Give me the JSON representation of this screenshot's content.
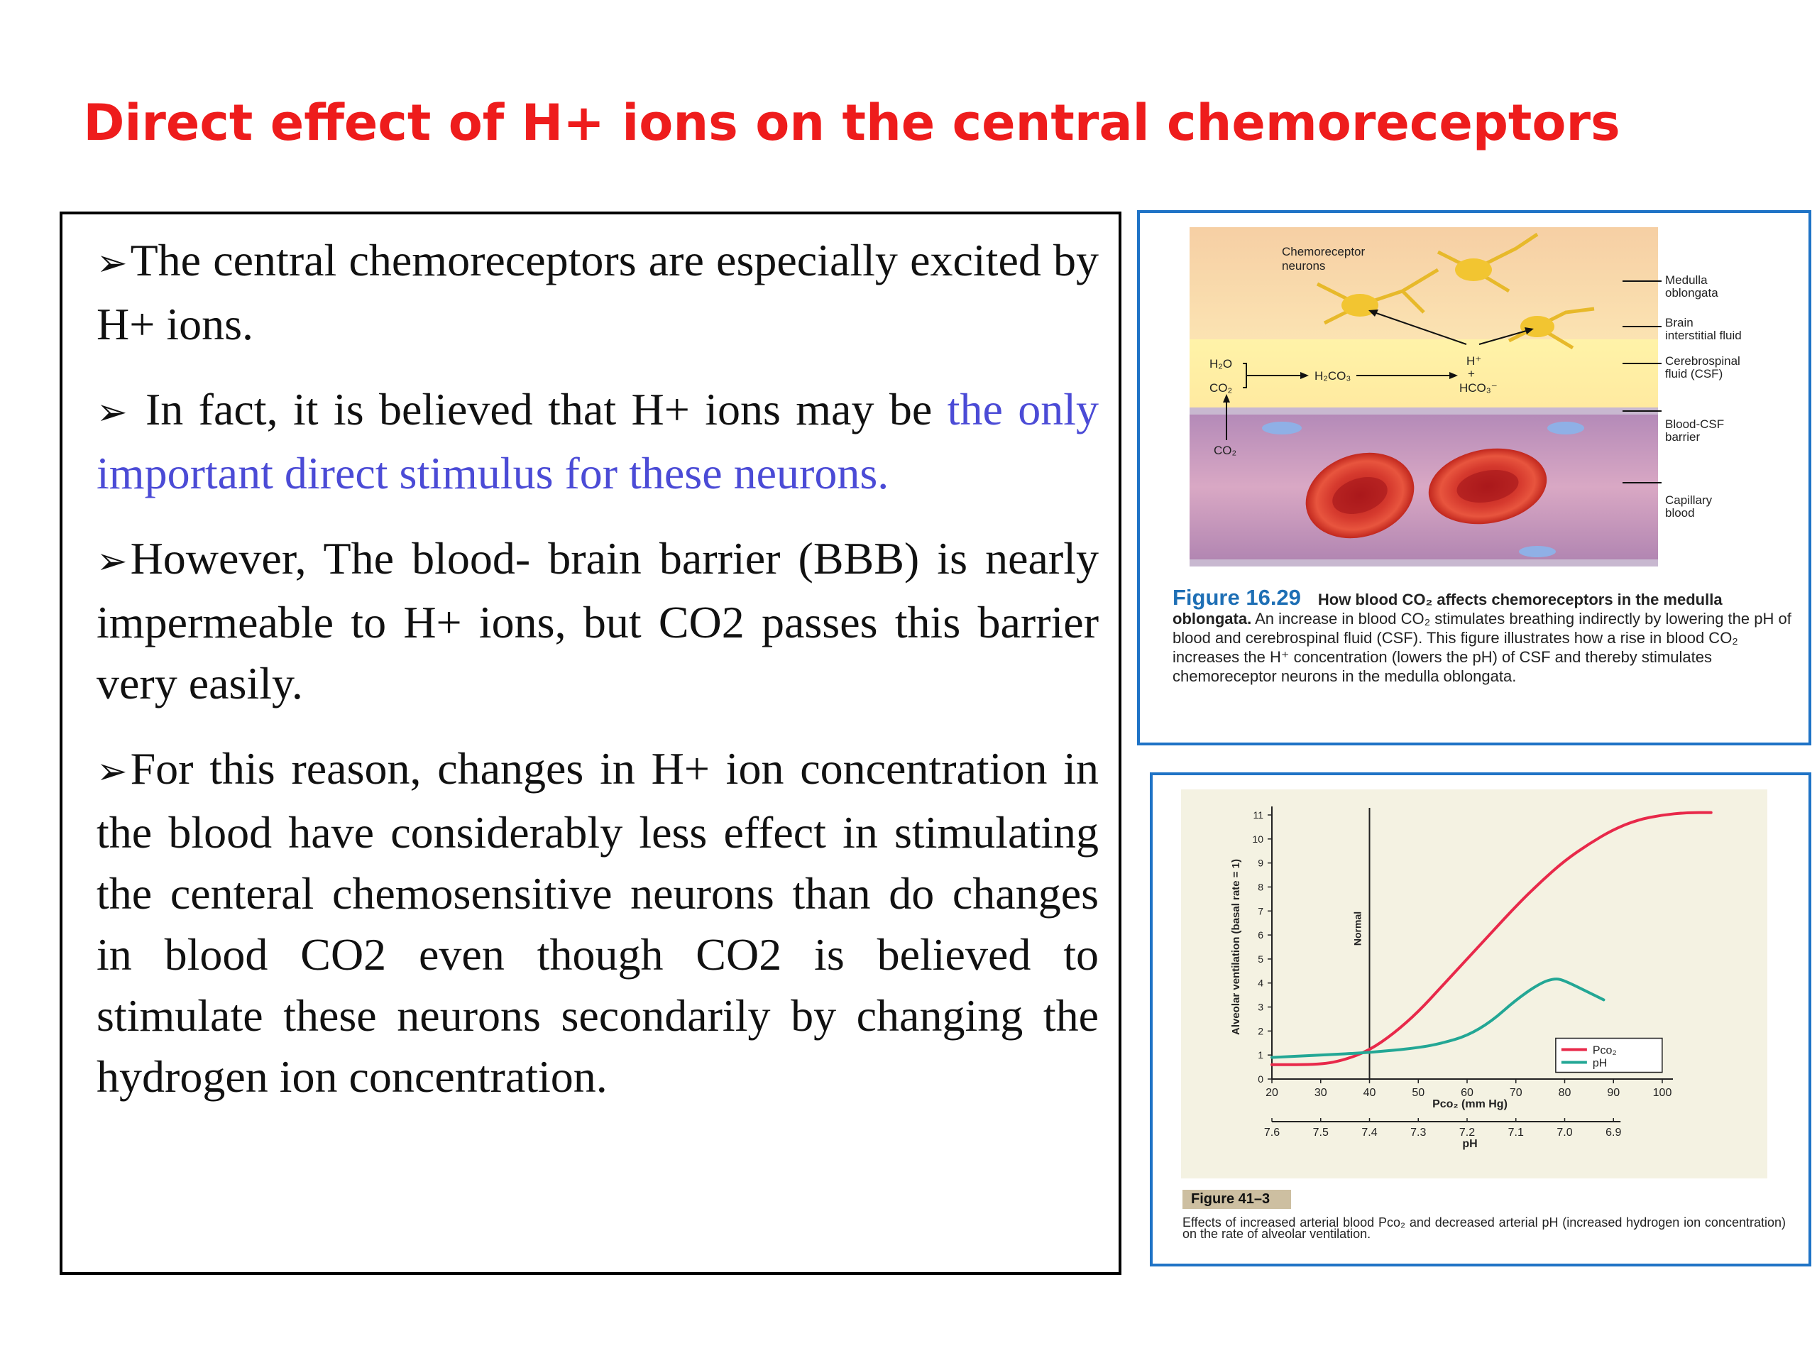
{
  "slide": {
    "title": "Direct effect of H+ ions on the central chemoreceptors",
    "paragraphs": [
      {
        "bullet": "➢",
        "text": "The central chemoreceptors are especially excited by H+ ions.",
        "highlight": ""
      },
      {
        "bullet": "➢",
        "text": " In fact, it is believed that H+ ions may be ",
        "highlight": "the only important direct stimulus for these neurons."
      },
      {
        "bullet": "➢",
        "text": "However, The blood- brain barrier (BBB) is nearly impermeable to H+ ions, but CO2 passes this barrier very easily.",
        "highlight": ""
      },
      {
        "bullet": "➢",
        "text": "For this reason, changes in H+ ion concentration in the blood have considerably less effect in stimulating the centeral chemosensitive neurons than do changes in blood CO2  even though CO2 is believed to stimulate these neurons secondarily by changing the hydrogen ion concentration.",
        "highlight": ""
      }
    ],
    "colors": {
      "title": "#ee1c1c",
      "highlight": "#4b4bd6",
      "figure_border": "#1f73c6"
    }
  },
  "figure1": {
    "labels": {
      "neurons": [
        "Chemoreceptor",
        "neurons"
      ],
      "medulla": [
        "Medulla",
        "oblongata"
      ],
      "interstitial": [
        "Brain",
        "interstitial fluid"
      ],
      "csf": [
        "Cerebrospinal",
        "fluid (CSF)"
      ],
      "barrier": [
        "Blood-CSF",
        "barrier"
      ],
      "capillary": [
        "Capillary",
        "blood"
      ],
      "h2o": "H₂O",
      "co2_top": "CO₂",
      "h2co3": "H₂CO₃",
      "hplus": "H⁺",
      "plus": "+",
      "hco3": "HCO₃⁻",
      "co2_bottom": "CO₂"
    },
    "caption": {
      "figure_label": "Figure 16.29",
      "bold": "How blood CO₂ affects chemoreceptors in the medulla oblongata.",
      "text": " An increase in blood CO₂ stimulates breathing indirectly by lowering the pH of blood and cerebrospinal fluid (CSF). This figure illustrates how a rise in blood CO₂ increases the H⁺ concentration (lowers the pH) of CSF and thereby stimulates chemoreceptor neurons in the medulla oblongata."
    }
  },
  "figure2": {
    "figure_tag": "Figure 41–3",
    "caption": "Effects of increased arterial blood Pco₂ and decreased arterial pH (increased hydrogen ion concentration) on the rate of alveolar ventilation.",
    "chart_data": {
      "type": "line",
      "ylabel": "Alveolar ventilation (basal rate = 1)",
      "xlabel": "Pco₂ (mm Hg)",
      "x2label": "pH",
      "ylim": [
        0,
        11
      ],
      "xlim": [
        20,
        100
      ],
      "yticks": [
        "0",
        "1",
        "2",
        "3",
        "4",
        "5",
        "6",
        "7",
        "8",
        "9",
        "10",
        "11"
      ],
      "xticks": [
        "20",
        "30",
        "40",
        "50",
        "60",
        "70",
        "80",
        "90",
        "100"
      ],
      "x2ticks": [
        "7.6",
        "7.5",
        "7.4",
        "7.3",
        "7.2",
        "7.1",
        "7.0",
        "6.9"
      ],
      "normal_label": "Normal",
      "normal_x": 40,
      "legend_position": "bottom-right",
      "series": [
        {
          "name": "Pco₂",
          "color": "#e8294a",
          "x": [
            20,
            30,
            35,
            40,
            45,
            50,
            55,
            60,
            65,
            70,
            75,
            80,
            85,
            90,
            95,
            100,
            105,
            110
          ],
          "y": [
            0.6,
            0.6,
            0.8,
            1.2,
            1.9,
            2.8,
            3.9,
            5.0,
            6.1,
            7.2,
            8.2,
            9.1,
            9.8,
            10.4,
            10.8,
            11.0,
            11.1,
            11.1
          ]
        },
        {
          "name": "pH",
          "color": "#23a795",
          "x": [
            20,
            30,
            40,
            50,
            55,
            60,
            65,
            70,
            75,
            78,
            80,
            85,
            88
          ],
          "y": [
            0.9,
            1.0,
            1.1,
            1.3,
            1.5,
            1.8,
            2.4,
            3.3,
            4.0,
            4.2,
            4.1,
            3.6,
            3.3
          ]
        }
      ]
    }
  }
}
